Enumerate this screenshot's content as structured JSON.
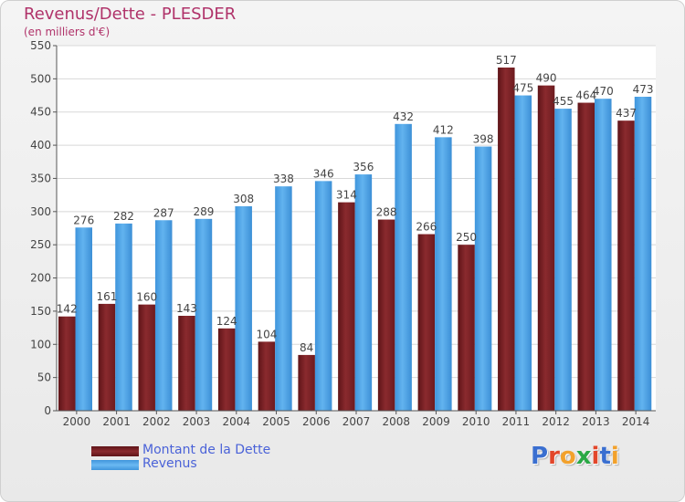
{
  "title": "Revenus/Dette - PLESDER",
  "subtitle": "(en milliers d'€)",
  "legend": {
    "debt_label": "Montant de la Dette",
    "revenue_label": "Revenus"
  },
  "logo": {
    "letters": [
      "P",
      "r",
      "o",
      "x",
      "i",
      "t",
      "i"
    ],
    "colors": [
      "#3a6fd0",
      "#e2462a",
      "#f2a12c",
      "#2aa845",
      "#e2462a",
      "#3a6fd0",
      "#f2a12c"
    ]
  },
  "colors": {
    "debt": "#7a1f23",
    "debt_light": "#9c3a3e",
    "revenue": "#4ea3e6",
    "revenue_light": "#6bb9f2",
    "title": "#b0336a",
    "legend_text": "#4a62d8"
  },
  "chart_data": {
    "type": "bar",
    "categories": [
      "2000",
      "2001",
      "2002",
      "2003",
      "2004",
      "2005",
      "2006",
      "2007",
      "2008",
      "2009",
      "2010",
      "2011",
      "2012",
      "2013",
      "2014"
    ],
    "series": [
      {
        "name": "Montant de la Dette",
        "values": [
          142,
          161,
          160,
          143,
          124,
          104,
          84,
          314,
          288,
          266,
          250,
          517,
          490,
          464,
          437
        ],
        "labels": [
          "142",
          "161",
          "160",
          "143",
          "124",
          "104",
          "84",
          "314",
          "288",
          "266",
          "250",
          "517",
          "490",
          "464",
          "437"
        ]
      },
      {
        "name": "Revenus",
        "values": [
          276,
          282,
          287,
          289,
          308,
          338,
          346,
          356,
          432,
          412,
          398,
          475,
          455,
          470,
          473
        ],
        "labels": [
          "276",
          "282",
          "287",
          "289",
          "308",
          "338",
          "346",
          "356",
          "432",
          "412",
          "398",
          "475",
          "455",
          "470",
          "473"
        ]
      }
    ],
    "yticks": [
      "0",
      "50",
      "100",
      "150",
      "200",
      "250",
      "300",
      "350",
      "400",
      "450",
      "500",
      "550"
    ],
    "ylim": [
      0,
      550
    ],
    "grid": true
  }
}
